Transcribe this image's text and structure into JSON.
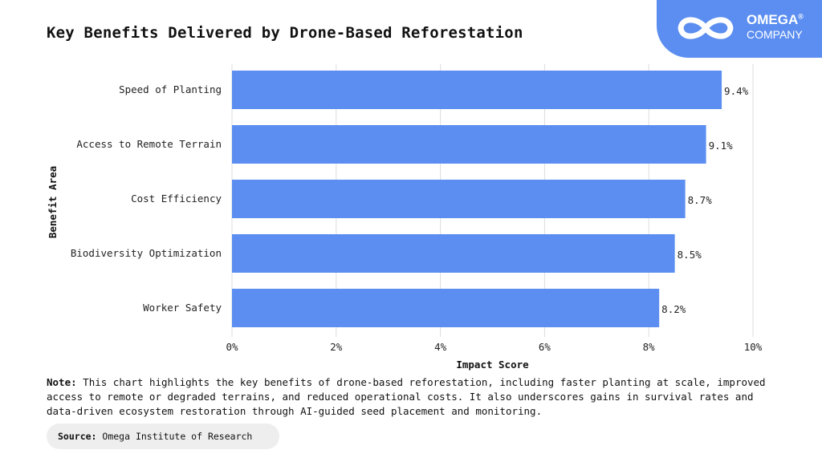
{
  "brand": {
    "name": "OMEGA",
    "registered": "®",
    "subtitle": "COMPANY",
    "color": "#5b8ef0"
  },
  "note": {
    "label": "Note:",
    "text": "This chart highlights the key benefits of drone-based reforestation, including faster planting at scale, improved access to remote or degraded terrains, and reduced operational costs. It also underscores gains in survival rates and data-driven ecosystem restoration through AI-guided seed placement and monitoring."
  },
  "source": {
    "label": "Source:",
    "text": "Omega Institute of Research"
  },
  "chart_data": {
    "type": "bar",
    "orientation": "horizontal",
    "title": "Key Benefits Delivered by Drone-Based Reforestation",
    "xlabel": "Impact Score",
    "ylabel": "Benefit Area",
    "categories": [
      "Speed of Planting",
      "Access to Remote Terrain",
      "Cost Efficiency",
      "Biodiversity Optimization",
      "Worker Safety"
    ],
    "values": [
      9.4,
      9.1,
      8.7,
      8.5,
      8.2
    ],
    "value_labels": [
      "9.4%",
      "9.1%",
      "8.7%",
      "8.5%",
      "8.2%"
    ],
    "xlim": [
      0,
      10
    ],
    "xticks": [
      0,
      2,
      4,
      6,
      8,
      10
    ],
    "xtick_labels": [
      "0%",
      "2%",
      "4%",
      "6%",
      "8%",
      "10%"
    ],
    "grid": true,
    "bar_color": "#5b8ef0"
  }
}
